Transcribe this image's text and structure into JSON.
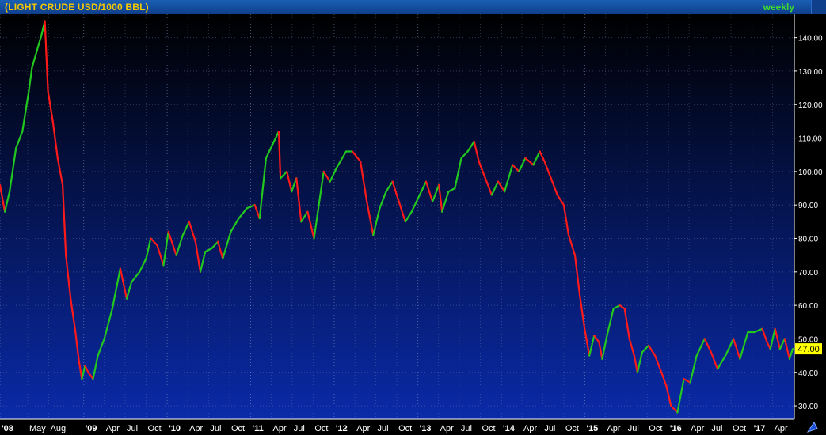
{
  "header": {
    "title": "(LIGHT CRUDE USD/1000 BBL)",
    "frequency": "weekly"
  },
  "last_price_label": "47.00",
  "colors": {
    "up": "#22c81e",
    "down": "#ff1a1a",
    "background_top": "#000000",
    "background_bottom": "#0a2aa8",
    "axis_text": "#ffffff",
    "last_price_bg": "#ffff00",
    "title": "#f5c800",
    "frequency": "#3ddc2e"
  },
  "chart_data": {
    "type": "line",
    "series": [
      {
        "points": [
          [
            "2008-01-01",
            96
          ],
          [
            "2008-01-22",
            88
          ],
          [
            "2008-02-12",
            94
          ],
          [
            "2008-03-11",
            107
          ],
          [
            "2008-04-08",
            112
          ],
          [
            "2008-05-06",
            124
          ],
          [
            "2008-05-20",
            131
          ],
          [
            "2008-06-10",
            136
          ],
          [
            "2008-07-01",
            141
          ],
          [
            "2008-07-15",
            145
          ],
          [
            "2008-07-29",
            124
          ],
          [
            "2008-08-19",
            115
          ],
          [
            "2008-09-09",
            104
          ],
          [
            "2008-10-01",
            96
          ],
          [
            "2008-10-15",
            75
          ],
          [
            "2008-11-05",
            62
          ],
          [
            "2008-11-26",
            52
          ],
          [
            "2008-12-10",
            44
          ],
          [
            "2008-12-24",
            38
          ],
          [
            "2009-01-07",
            42
          ],
          [
            "2009-01-21",
            40
          ],
          [
            "2009-02-11",
            38
          ],
          [
            "2009-03-04",
            45
          ],
          [
            "2009-04-01",
            50
          ],
          [
            "2009-05-06",
            59
          ],
          [
            "2009-06-10",
            71
          ],
          [
            "2009-07-08",
            62
          ],
          [
            "2009-07-29",
            67
          ],
          [
            "2009-09-02",
            70
          ],
          [
            "2009-10-01",
            74
          ],
          [
            "2009-10-21",
            80
          ],
          [
            "2009-11-18",
            78
          ],
          [
            "2009-12-16",
            72
          ],
          [
            "2010-01-06",
            82
          ],
          [
            "2010-02-10",
            75
          ],
          [
            "2010-03-10",
            81
          ],
          [
            "2010-04-07",
            85
          ],
          [
            "2010-05-05",
            79
          ],
          [
            "2010-05-26",
            70
          ],
          [
            "2010-06-16",
            76
          ],
          [
            "2010-07-14",
            77
          ],
          [
            "2010-08-11",
            79
          ],
          [
            "2010-09-01",
            74
          ],
          [
            "2010-10-06",
            82
          ],
          [
            "2010-11-10",
            86
          ],
          [
            "2010-12-15",
            89
          ],
          [
            "2011-01-19",
            90
          ],
          [
            "2011-02-09",
            86
          ],
          [
            "2011-03-09",
            104
          ],
          [
            "2011-04-06",
            108
          ],
          [
            "2011-05-04",
            112
          ],
          [
            "2011-05-11",
            98
          ],
          [
            "2011-06-08",
            100
          ],
          [
            "2011-06-29",
            94
          ],
          [
            "2011-07-20",
            98
          ],
          [
            "2011-08-10",
            85
          ],
          [
            "2011-09-07",
            88
          ],
          [
            "2011-10-05",
            80
          ],
          [
            "2011-11-16",
            100
          ],
          [
            "2011-12-14",
            97
          ],
          [
            "2012-01-11",
            101
          ],
          [
            "2012-02-22",
            106
          ],
          [
            "2012-03-21",
            106
          ],
          [
            "2012-04-25",
            103
          ],
          [
            "2012-05-23",
            91
          ],
          [
            "2012-06-20",
            81
          ],
          [
            "2012-07-18",
            89
          ],
          [
            "2012-08-15",
            94
          ],
          [
            "2012-09-12",
            97
          ],
          [
            "2012-10-10",
            91
          ],
          [
            "2012-11-07",
            85
          ],
          [
            "2012-12-05",
            88
          ],
          [
            "2013-01-09",
            93
          ],
          [
            "2013-02-06",
            97
          ],
          [
            "2013-03-06",
            91
          ],
          [
            "2013-04-03",
            96
          ],
          [
            "2013-04-17",
            88
          ],
          [
            "2013-05-15",
            94
          ],
          [
            "2013-06-12",
            95
          ],
          [
            "2013-07-10",
            104
          ],
          [
            "2013-08-07",
            106
          ],
          [
            "2013-09-04",
            109
          ],
          [
            "2013-09-25",
            103
          ],
          [
            "2013-10-23",
            98
          ],
          [
            "2013-11-20",
            93
          ],
          [
            "2013-12-18",
            97
          ],
          [
            "2014-01-15",
            94
          ],
          [
            "2014-02-19",
            102
          ],
          [
            "2014-03-19",
            100
          ],
          [
            "2014-04-16",
            104
          ],
          [
            "2014-05-21",
            102
          ],
          [
            "2014-06-18",
            106
          ],
          [
            "2014-07-09",
            103
          ],
          [
            "2014-08-06",
            98
          ],
          [
            "2014-09-03",
            93
          ],
          [
            "2014-10-01",
            90
          ],
          [
            "2014-10-22",
            81
          ],
          [
            "2014-11-19",
            75
          ],
          [
            "2014-12-10",
            63
          ],
          [
            "2014-12-31",
            53
          ],
          [
            "2015-01-21",
            45
          ],
          [
            "2015-02-11",
            51
          ],
          [
            "2015-03-04",
            49
          ],
          [
            "2015-03-18",
            44
          ],
          [
            "2015-04-08",
            51
          ],
          [
            "2015-05-06",
            59
          ],
          [
            "2015-06-03",
            60
          ],
          [
            "2015-06-24",
            59
          ],
          [
            "2015-07-15",
            50
          ],
          [
            "2015-08-05",
            45
          ],
          [
            "2015-08-19",
            40
          ],
          [
            "2015-09-09",
            46
          ],
          [
            "2015-10-07",
            48
          ],
          [
            "2015-11-04",
            45
          ],
          [
            "2015-12-02",
            40
          ],
          [
            "2015-12-23",
            36
          ],
          [
            "2016-01-13",
            30
          ],
          [
            "2016-02-10",
            28
          ],
          [
            "2016-03-09",
            38
          ],
          [
            "2016-04-06",
            37
          ],
          [
            "2016-05-04",
            45
          ],
          [
            "2016-06-08",
            50
          ],
          [
            "2016-07-06",
            46
          ],
          [
            "2016-08-03",
            41
          ],
          [
            "2016-09-07",
            45
          ],
          [
            "2016-10-12",
            50
          ],
          [
            "2016-11-09",
            44
          ],
          [
            "2016-12-14",
            52
          ],
          [
            "2017-01-11",
            52
          ],
          [
            "2017-02-15",
            53
          ],
          [
            "2017-03-08",
            49
          ],
          [
            "2017-03-22",
            47
          ],
          [
            "2017-04-12",
            53
          ],
          [
            "2017-05-03",
            47
          ],
          [
            "2017-05-24",
            50
          ],
          [
            "2017-06-14",
            44
          ],
          [
            "2017-06-28",
            47
          ]
        ]
      }
    ],
    "ylim": [
      26,
      147
    ],
    "xlim": [
      "2008-01-01",
      "2017-07-05"
    ],
    "y_ticks": [
      30,
      40,
      50,
      60,
      70,
      80,
      90,
      100,
      110,
      120,
      130,
      140
    ],
    "y_tick_labels": [
      "30.00",
      "40.00",
      "50.00",
      "60.00",
      "70.00",
      "80.00",
      "90.00",
      "100.00",
      "110.00",
      "120.00",
      "130.00",
      "140.00"
    ],
    "x_ticks": [
      {
        "date": "2008-01-01",
        "label": "'08"
      },
      {
        "date": "2008-05-01",
        "label": "May"
      },
      {
        "date": "2008-08-01",
        "label": "Aug"
      },
      {
        "date": "2009-01-01",
        "label": "'09"
      },
      {
        "date": "2009-04-01",
        "label": "Apr"
      },
      {
        "date": "2009-07-01",
        "label": "Jul"
      },
      {
        "date": "2009-10-01",
        "label": "Oct"
      },
      {
        "date": "2010-01-01",
        "label": "'10"
      },
      {
        "date": "2010-04-01",
        "label": "Apr"
      },
      {
        "date": "2010-07-01",
        "label": "Jul"
      },
      {
        "date": "2010-10-01",
        "label": "Oct"
      },
      {
        "date": "2011-01-01",
        "label": "'11"
      },
      {
        "date": "2011-04-01",
        "label": "Apr"
      },
      {
        "date": "2011-07-01",
        "label": "Jul"
      },
      {
        "date": "2011-10-01",
        "label": "Oct"
      },
      {
        "date": "2012-01-01",
        "label": "'12"
      },
      {
        "date": "2012-04-01",
        "label": "Apr"
      },
      {
        "date": "2012-07-01",
        "label": "Jul"
      },
      {
        "date": "2012-10-01",
        "label": "Oct"
      },
      {
        "date": "2013-01-01",
        "label": "'13"
      },
      {
        "date": "2013-04-01",
        "label": "Apr"
      },
      {
        "date": "2013-07-01",
        "label": "Jul"
      },
      {
        "date": "2013-10-01",
        "label": "Oct"
      },
      {
        "date": "2014-01-01",
        "label": "'14"
      },
      {
        "date": "2014-04-01",
        "label": "Apr"
      },
      {
        "date": "2014-07-01",
        "label": "Jul"
      },
      {
        "date": "2014-10-01",
        "label": "Oct"
      },
      {
        "date": "2015-01-01",
        "label": "'15"
      },
      {
        "date": "2015-04-01",
        "label": "Apr"
      },
      {
        "date": "2015-07-01",
        "label": "Jul"
      },
      {
        "date": "2015-10-01",
        "label": "Oct"
      },
      {
        "date": "2016-01-01",
        "label": "'16"
      },
      {
        "date": "2016-04-01",
        "label": "Apr"
      },
      {
        "date": "2016-07-01",
        "label": "Jul"
      },
      {
        "date": "2016-10-01",
        "label": "Oct"
      },
      {
        "date": "2017-01-01",
        "label": "'17"
      },
      {
        "date": "2017-04-01",
        "label": "Apr"
      }
    ],
    "grid": true,
    "y_axis_position": "right"
  }
}
